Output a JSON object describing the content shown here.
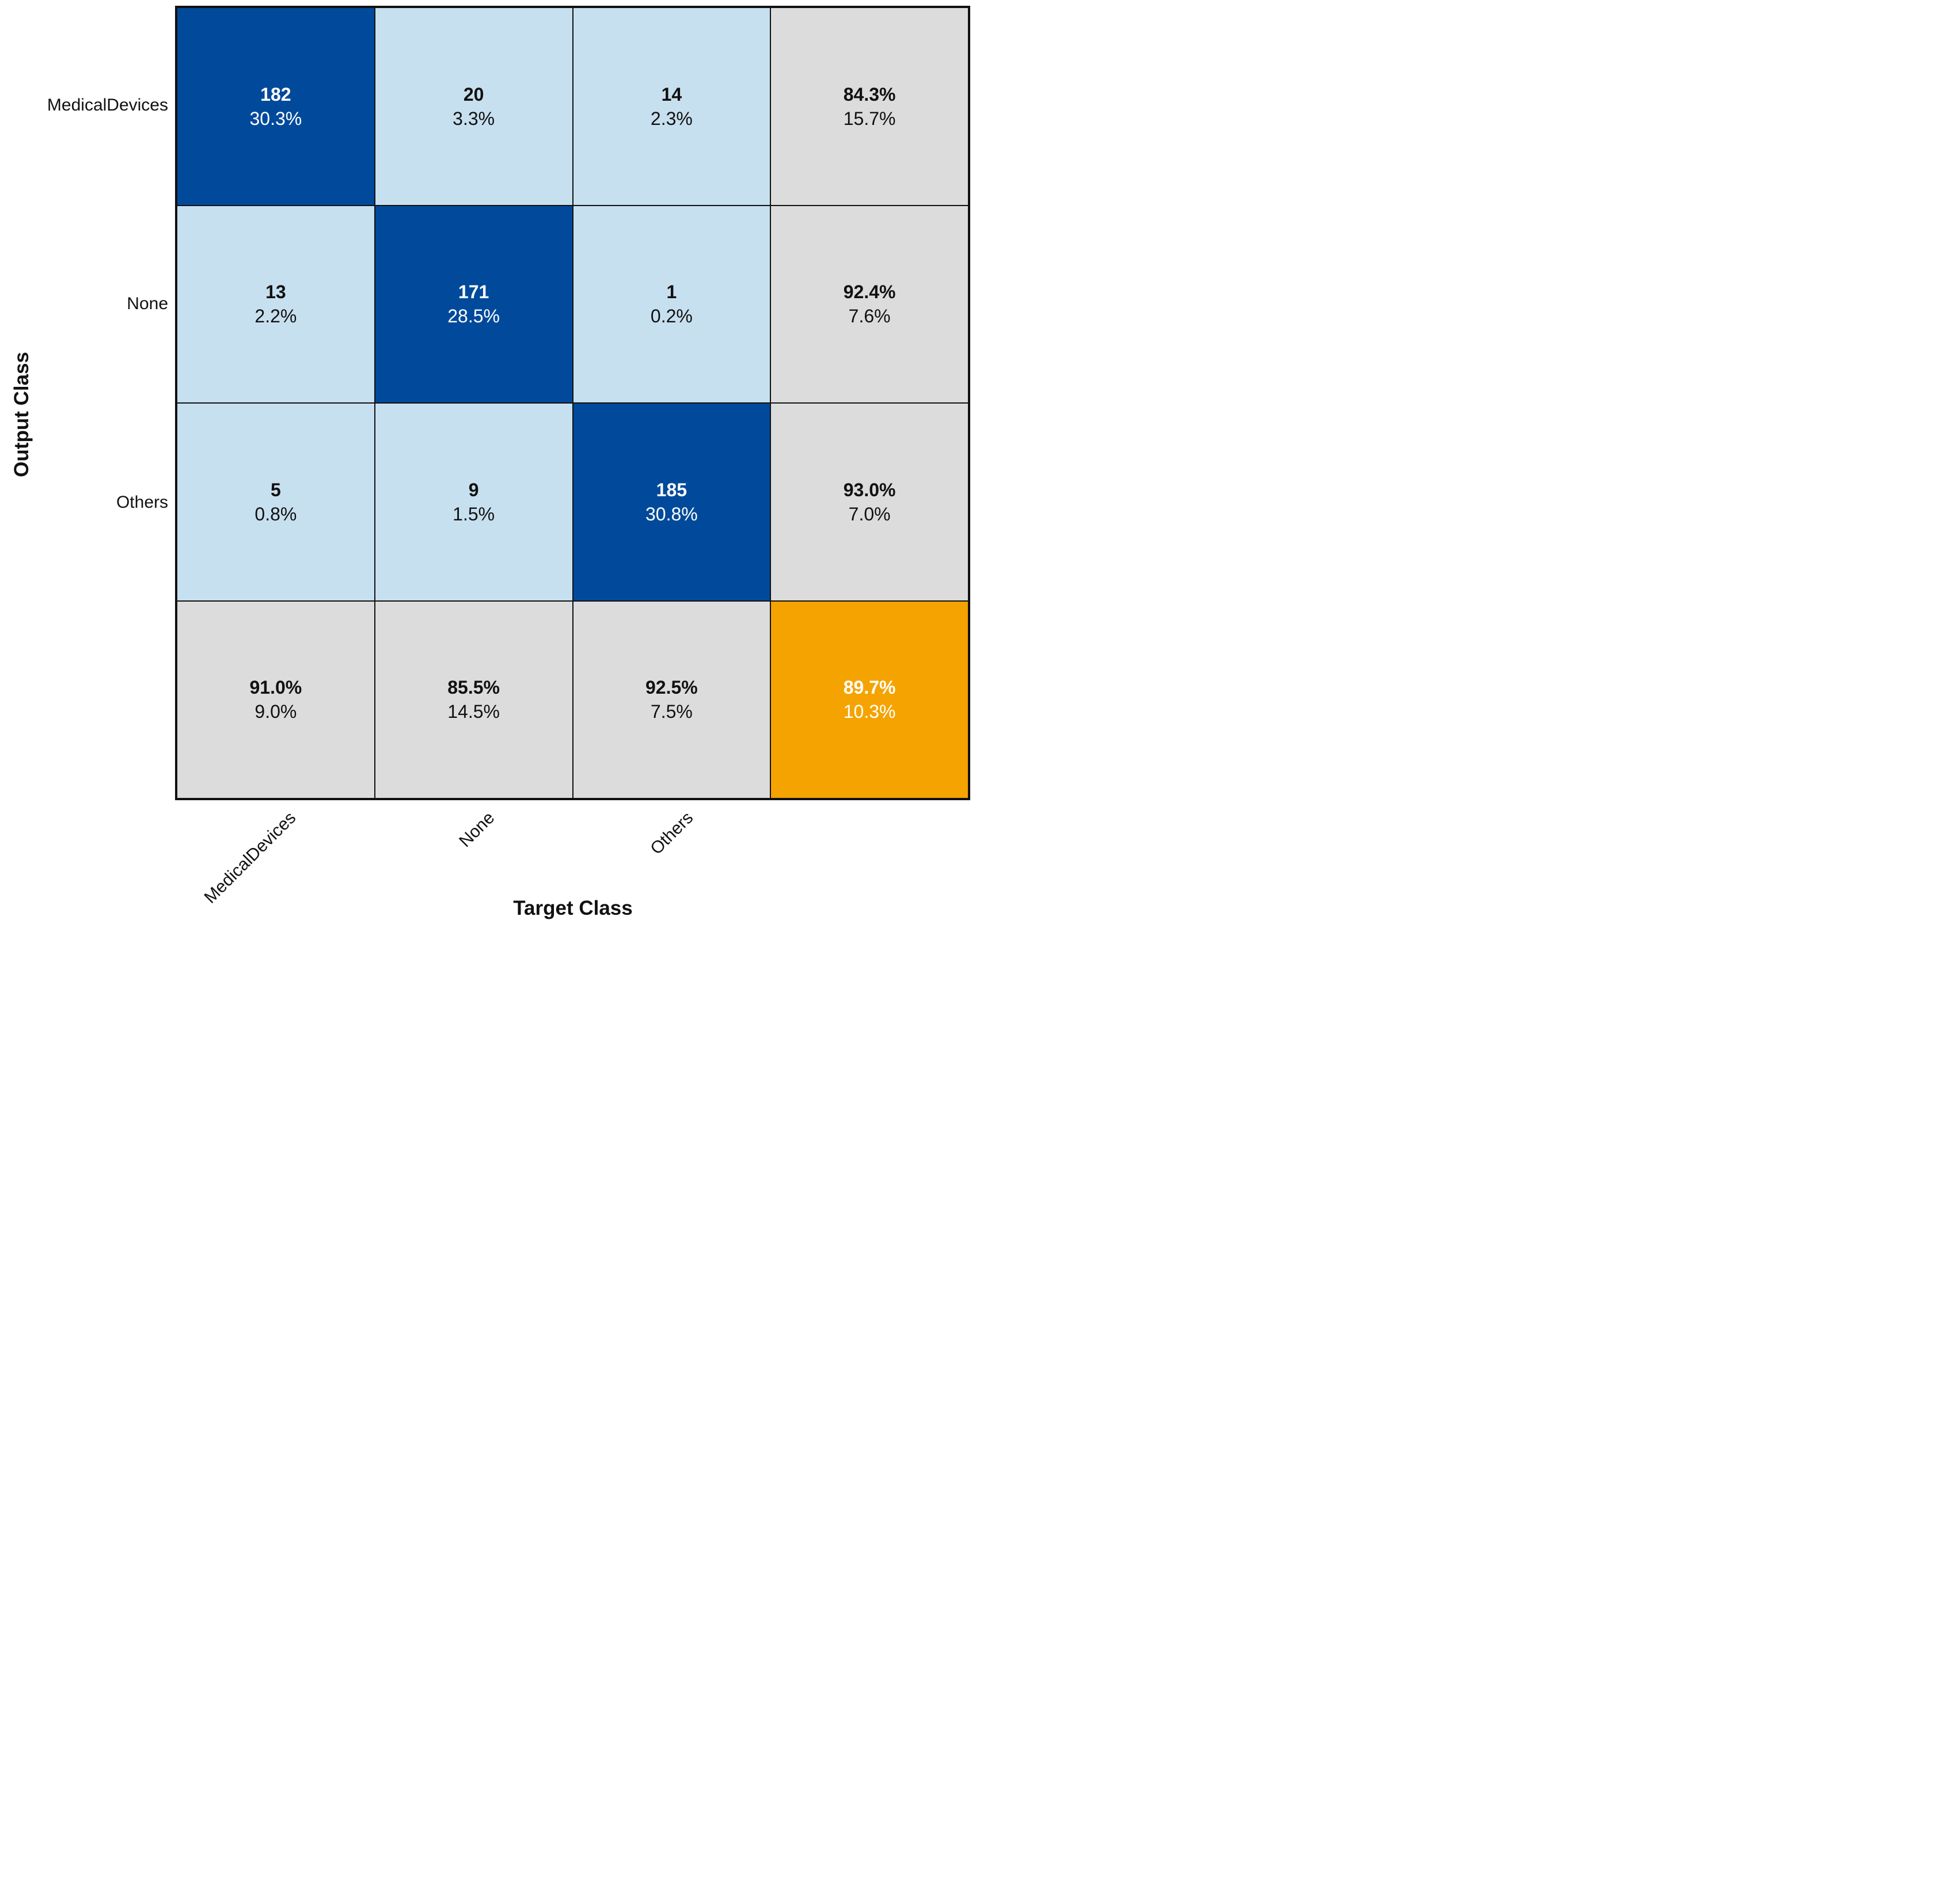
{
  "figure": {
    "xlabel": "Target Class",
    "ylabel": "Output Class"
  },
  "axis": {
    "row_labels": [
      "MedicalDevices",
      "None",
      "Others"
    ],
    "col_labels": [
      "MedicalDevices",
      "None",
      "Others"
    ]
  },
  "cells": {
    "r0c0": {
      "line1": "182",
      "line2": "30.3%"
    },
    "r0c1": {
      "line1": "20",
      "line2": "3.3%"
    },
    "r0c2": {
      "line1": "14",
      "line2": "2.3%"
    },
    "r0c3": {
      "line1": "84.3%",
      "line2": "15.7%"
    },
    "r1c0": {
      "line1": "13",
      "line2": "2.2%"
    },
    "r1c1": {
      "line1": "171",
      "line2": "28.5%"
    },
    "r1c2": {
      "line1": "1",
      "line2": "0.2%"
    },
    "r1c3": {
      "line1": "92.4%",
      "line2": "7.6%"
    },
    "r2c0": {
      "line1": "5",
      "line2": "0.8%"
    },
    "r2c1": {
      "line1": "9",
      "line2": "1.5%"
    },
    "r2c2": {
      "line1": "185",
      "line2": "30.8%"
    },
    "r2c3": {
      "line1": "93.0%",
      "line2": "7.0%"
    },
    "r3c0": {
      "line1": "91.0%",
      "line2": "9.0%"
    },
    "r3c1": {
      "line1": "85.5%",
      "line2": "14.5%"
    },
    "r3c2": {
      "line1": "92.5%",
      "line2": "7.5%"
    },
    "r3c3": {
      "line1": "89.7%",
      "line2": "10.3%"
    }
  },
  "chart_data": {
    "type": "heatmap",
    "subtype": "confusion-matrix",
    "title": "",
    "xlabel": "Target Class",
    "ylabel": "Output Class",
    "classes": [
      "MedicalDevices",
      "None",
      "Others"
    ],
    "counts": [
      [
        182,
        20,
        14
      ],
      [
        13,
        171,
        1
      ],
      [
        5,
        9,
        185
      ]
    ],
    "percent_of_total": [
      [
        30.3,
        3.3,
        2.3
      ],
      [
        2.2,
        28.5,
        0.2
      ],
      [
        0.8,
        1.5,
        30.8
      ]
    ],
    "row_summary": {
      "correct_pct": [
        84.3,
        92.4,
        93.0
      ],
      "incorrect_pct": [
        15.7,
        7.6,
        7.0
      ]
    },
    "col_summary": {
      "correct_pct": [
        91.0,
        85.5,
        92.5
      ],
      "incorrect_pct": [
        9.0,
        14.5,
        7.5
      ]
    },
    "overall": {
      "accuracy_pct": 89.7,
      "error_pct": 10.3
    },
    "grid": "on",
    "legend": "none",
    "colors": {
      "diagonal": "#014a9b",
      "off_diagonal": "#c7e0ef",
      "summary": "#dcdcdc",
      "overall": "#f5a300",
      "grid_line": "#111111",
      "text_dark": "#111111",
      "text_light": "#ffffff",
      "background": "#ffffff"
    }
  }
}
